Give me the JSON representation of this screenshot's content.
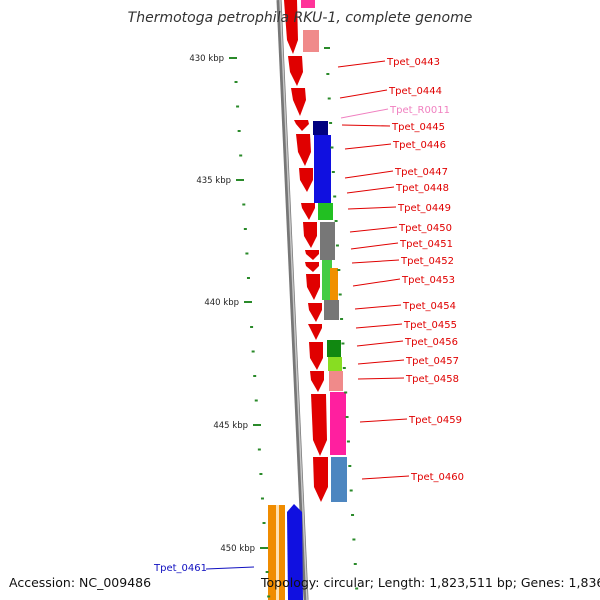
{
  "title": "Thermotoga petrophila RKU-1, complete genome",
  "footer": {
    "accession": "Accession: NC_009486",
    "summary": "Topology: circular; Length: 1,823,511 bp; Genes: 1,836"
  },
  "scale_labels": [
    "430 kbp",
    "435 kbp",
    "440 kbp",
    "445 kbp",
    "450 kbp"
  ],
  "genes": [
    {
      "name": "Tpet_0443",
      "color": "#e00000"
    },
    {
      "name": "Tpet_0444",
      "color": "#e00000"
    },
    {
      "name": "Tpet_R0011",
      "color": "#f080c0"
    },
    {
      "name": "Tpet_0445",
      "color": "#e00000"
    },
    {
      "name": "Tpet_0446",
      "color": "#e00000"
    },
    {
      "name": "Tpet_0447",
      "color": "#e00000"
    },
    {
      "name": "Tpet_0448",
      "color": "#e00000"
    },
    {
      "name": "Tpet_0449",
      "color": "#e00000"
    },
    {
      "name": "Tpet_0450",
      "color": "#e00000"
    },
    {
      "name": "Tpet_0451",
      "color": "#e00000"
    },
    {
      "name": "Tpet_0452",
      "color": "#e00000"
    },
    {
      "name": "Tpet_0453",
      "color": "#e00000"
    },
    {
      "name": "Tpet_0454",
      "color": "#e00000"
    },
    {
      "name": "Tpet_0455",
      "color": "#e00000"
    },
    {
      "name": "Tpet_0456",
      "color": "#e00000"
    },
    {
      "name": "Tpet_0457",
      "color": "#e00000"
    },
    {
      "name": "Tpet_0458",
      "color": "#e00000"
    },
    {
      "name": "Tpet_0459",
      "color": "#e00000"
    },
    {
      "name": "Tpet_0460",
      "color": "#e00000"
    },
    {
      "name": "Tpet_0461",
      "color": "#1010c0"
    }
  ]
}
